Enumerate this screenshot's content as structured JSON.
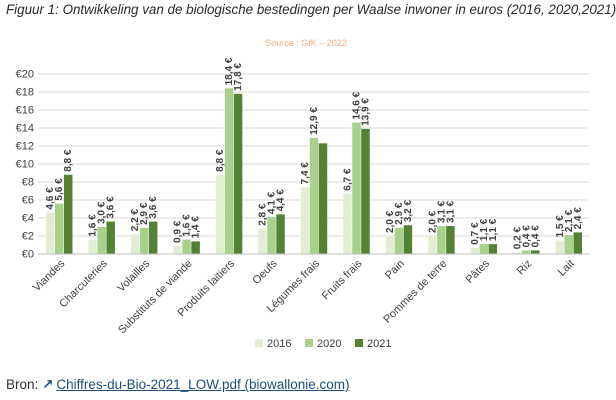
{
  "figure": {
    "title": "Figuur 1: Ontwikkeling van de biologische bestedingen per Waalse inwoner in euros (2016, 2020,2021)"
  },
  "footer": {
    "prefix": "Bron:",
    "link_text": "Chiffres-du-Bio-2021_LOW.pdf (biowallonie.com)",
    "link_icon": "arrow-up-right-icon"
  },
  "colors": {
    "s2016": "#e2eed4",
    "s2020": "#a9d18e",
    "s2021": "#548235",
    "source_text": "#f4b183",
    "grid": "#d9d9d9",
    "axis_text": "#404040"
  },
  "chart_data": {
    "type": "bar",
    "subtitle": "Source : GfK – 2022",
    "categories": [
      "Viandes",
      "Charcuteries",
      "Volailles",
      "Substituts de viande",
      "Produits laitiers",
      "Oeufs",
      "Légumes frais",
      "Fruits frais",
      "Pain",
      "Pommes de terre",
      "Pâtes",
      "Riz",
      "Lait"
    ],
    "series": [
      {
        "name": "2016",
        "values": [
          4.6,
          1.6,
          2.2,
          0.9,
          8.8,
          2.8,
          7.4,
          6.7,
          2.0,
          2.0,
          0.7,
          0.2,
          1.5
        ],
        "labels": [
          "4,6 €",
          "1,6 €",
          "2,2 €",
          "0,9 €",
          "8,8 €",
          "2,8 €",
          "7,4 €",
          "6,7 €",
          "2,0 €",
          "2,0 €",
          "0,7 €",
          "0,2 €",
          "1,5 €"
        ]
      },
      {
        "name": "2020",
        "values": [
          5.6,
          3.0,
          2.9,
          1.6,
          18.4,
          4.1,
          12.9,
          14.6,
          2.9,
          3.1,
          1.1,
          0.4,
          2.1
        ],
        "labels": [
          "5,6 €",
          "3,0 €",
          "2,9 €",
          "1,6 €",
          "18,4 €",
          "4,1 €",
          "12,9 €",
          "14,6 €",
          "2,9 €",
          "3,1 €",
          "1,1 €",
          "0,4 €",
          "2,1 €"
        ]
      },
      {
        "name": "2021",
        "values": [
          8.8,
          3.6,
          3.6,
          1.4,
          17.8,
          4.4,
          null,
          13.9,
          3.2,
          3.1,
          1.1,
          0.4,
          2.4
        ],
        "labels": [
          "8,8 €",
          "3,6 €",
          "3,6 €",
          "1,4 €",
          "17,8 €",
          "4,4 €",
          "",
          "13,9 €",
          "3,2 €",
          "3,1 €",
          "1,1 €",
          "0,4 €",
          "2,4 €"
        ],
        "unlabeled_values": [
          null,
          null,
          null,
          null,
          null,
          null,
          12.3,
          null,
          null,
          null,
          null,
          null,
          null
        ]
      }
    ],
    "y_ticks": [
      "€0",
      "€2",
      "€4",
      "€6",
      "€8",
      "€10",
      "€12",
      "€14",
      "€16",
      "€18",
      "€20"
    ],
    "ylim": [
      0,
      20
    ],
    "grid": true,
    "legend_position": "bottom"
  }
}
